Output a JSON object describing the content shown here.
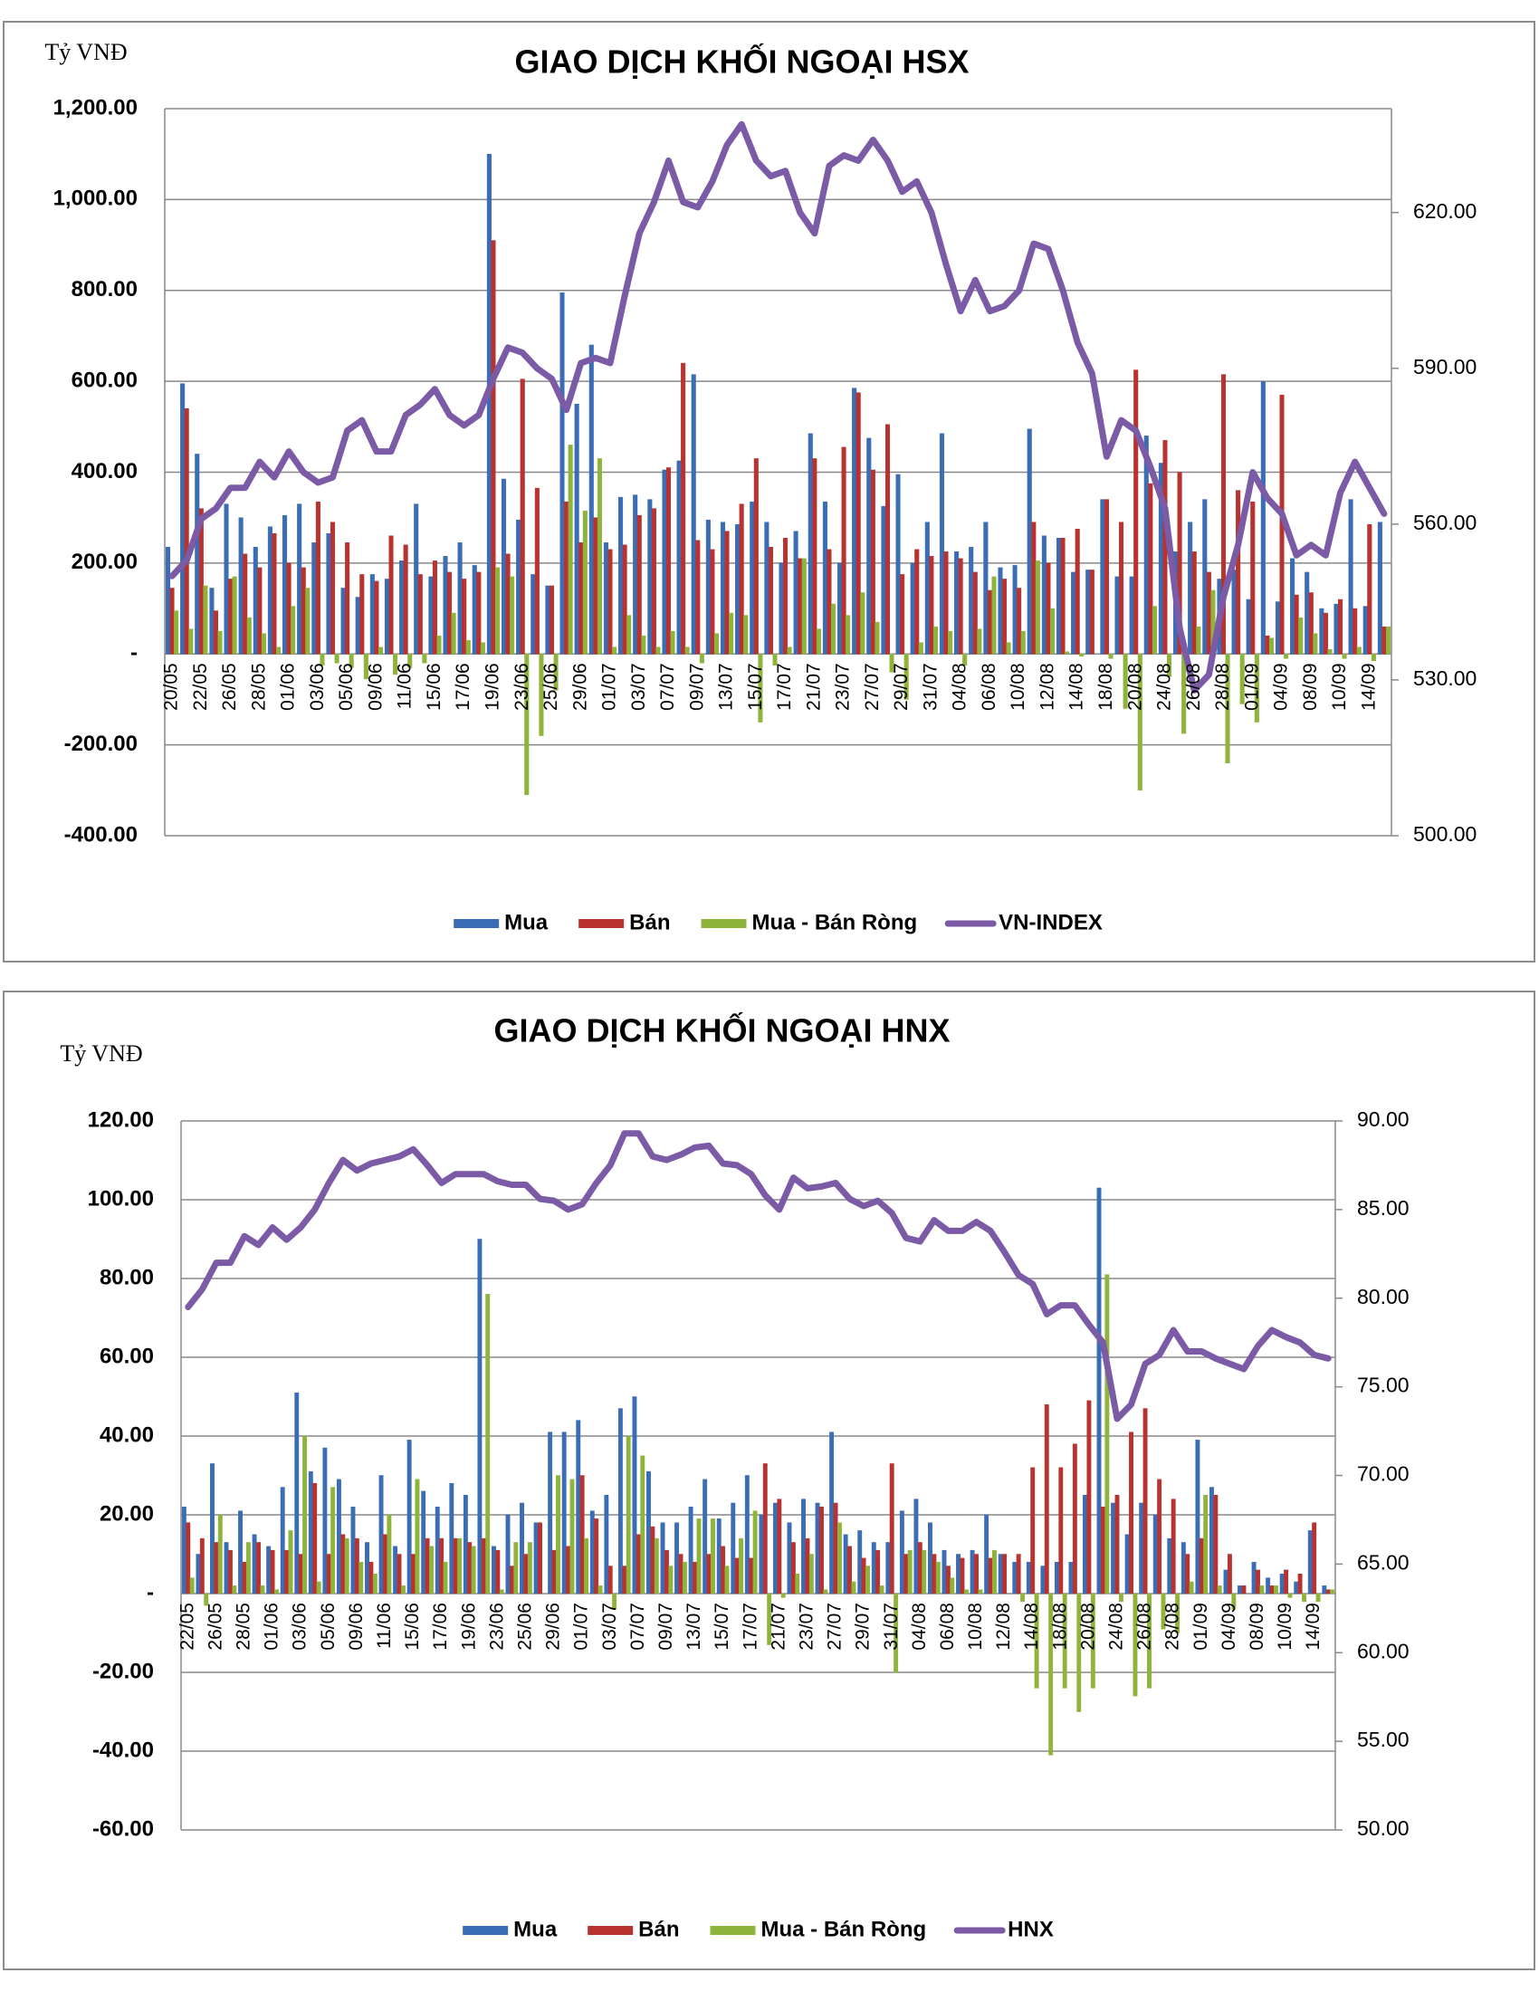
{
  "chart_data": [
    {
      "type": "bar",
      "title": "GIAO DỊCH KHỐI NGOẠI HSX",
      "y_label": "Tỷ VNĐ",
      "legend": "bottom",
      "grid": true,
      "categories": [
        "20/05",
        null,
        "22/05",
        null,
        "26/05",
        null,
        "28/05",
        null,
        "01/06",
        null,
        "03/06",
        null,
        "05/06",
        null,
        "09/06",
        null,
        "11/06",
        null,
        "15/06",
        null,
        "17/06",
        null,
        "19/06",
        null,
        "23/06",
        null,
        "25/06",
        null,
        "29/06",
        null,
        "01/07",
        null,
        "03/07",
        null,
        "07/07",
        null,
        "09/07",
        null,
        "13/07",
        null,
        "15/07",
        null,
        "17/07",
        null,
        "21/07",
        null,
        "23/07",
        null,
        "27/07",
        null,
        "29/07",
        null,
        "31/07",
        null,
        "04/08",
        null,
        "06/08",
        null,
        "10/08",
        null,
        "12/08",
        null,
        "14/08",
        null,
        "18/08",
        null,
        "20/08",
        null,
        "24/08",
        null,
        "26/08",
        null,
        "28/08",
        null,
        "01/09",
        null,
        "04/09",
        null,
        "08/09",
        null,
        "10/09",
        null,
        "14/09",
        null
      ],
      "ylim": [
        -400,
        1200
      ],
      "yticks": [
        {
          "value": -400,
          "label": "-400.00"
        },
        {
          "value": -200,
          "label": "-200.00"
        },
        {
          "value": 0,
          "label": "-"
        },
        {
          "value": 200,
          "label": "200.00"
        },
        {
          "value": 400,
          "label": "400.00"
        },
        {
          "value": 600,
          "label": "600.00"
        },
        {
          "value": 800,
          "label": "800.00"
        },
        {
          "value": 1000,
          "label": "1,000.00"
        },
        {
          "value": 1200,
          "label": "1,200.00"
        }
      ],
      "y2lim": [
        500,
        640
      ],
      "y2ticks": [
        {
          "value": 500,
          "label": "500.00"
        },
        {
          "value": 530,
          "label": "530.00"
        },
        {
          "value": 560,
          "label": "560.00"
        },
        {
          "value": 590,
          "label": "590.00"
        },
        {
          "value": 620,
          "label": "620.00"
        }
      ],
      "series": [
        {
          "name": "Mua",
          "color": "#3a6db5",
          "values": [
            235,
            595,
            440,
            145,
            330,
            300,
            235,
            280,
            305,
            330,
            245,
            265,
            145,
            125,
            175,
            165,
            205,
            330,
            170,
            215,
            245,
            195,
            1100,
            385,
            295,
            175,
            150,
            795,
            550,
            680,
            245,
            345,
            350,
            340,
            405,
            425,
            615,
            295,
            290,
            285,
            335,
            290,
            200,
            270,
            485,
            335,
            200,
            585,
            475,
            325,
            395,
            200,
            290,
            485,
            225,
            235,
            290,
            190,
            195,
            495,
            260,
            255,
            180,
            185,
            340,
            170,
            170,
            480,
            420,
            225,
            290,
            340,
            165,
            185,
            120,
            600,
            115,
            210,
            180,
            100,
            110,
            340,
            105,
            290
          ]
        },
        {
          "name": "Bán",
          "color": "#b83330",
          "values": [
            145,
            540,
            320,
            95,
            165,
            220,
            190,
            265,
            200,
            190,
            335,
            290,
            245,
            175,
            160,
            260,
            240,
            175,
            205,
            180,
            165,
            180,
            910,
            220,
            605,
            365,
            150,
            335,
            245,
            300,
            230,
            240,
            305,
            320,
            410,
            640,
            250,
            230,
            270,
            330,
            430,
            235,
            255,
            210,
            430,
            230,
            455,
            575,
            405,
            505,
            175,
            230,
            215,
            225,
            210,
            180,
            140,
            165,
            145,
            290,
            200,
            255,
            275,
            185,
            340,
            290,
            625,
            375,
            470,
            400,
            225,
            180,
            615,
            360,
            335,
            40,
            570,
            130,
            135,
            90,
            120,
            100,
            285,
            60
          ]
        },
        {
          "name": "Mua - Bán Ròng",
          "color": "#8fb43c",
          "values": [
            95,
            55,
            150,
            50,
            170,
            80,
            45,
            15,
            105,
            145,
            -25,
            -20,
            -30,
            -55,
            15,
            -45,
            -30,
            -20,
            40,
            90,
            30,
            25,
            190,
            170,
            -310,
            -180,
            -80,
            460,
            315,
            430,
            15,
            85,
            40,
            15,
            50,
            15,
            -20,
            45,
            90,
            85,
            -150,
            -25,
            15,
            210,
            55,
            110,
            85,
            135,
            70,
            -40,
            -100,
            25,
            60,
            50,
            -25,
            55,
            170,
            25,
            50,
            205,
            100,
            5,
            -5,
            0,
            -10,
            -120,
            -300,
            105,
            -50,
            -175,
            60,
            140,
            -240,
            -110,
            -150,
            35,
            -10,
            80,
            45,
            10,
            -10,
            15,
            -15,
            60
          ]
        },
        {
          "name": "VN-INDEX",
          "type": "line",
          "axis": "y2",
          "color": "#7b5aa6",
          "values": [
            550,
            553,
            561,
            563,
            567,
            567,
            572,
            569,
            574,
            570,
            568,
            569,
            578,
            580,
            574,
            574,
            581,
            583,
            586,
            581,
            579,
            581,
            588,
            594,
            593,
            590,
            588,
            582,
            591,
            592,
            591,
            604,
            616,
            622,
            630,
            622,
            621,
            626,
            633,
            637,
            630,
            627,
            628,
            620,
            616,
            629,
            631,
            630,
            634,
            630,
            624,
            626,
            620,
            610,
            601,
            607,
            601,
            602,
            605,
            614,
            613,
            605,
            595,
            589,
            573,
            580,
            578,
            571,
            563,
            540,
            528,
            531,
            546,
            556,
            570,
            565,
            562,
            554,
            556,
            554,
            566,
            572,
            567,
            562
          ]
        }
      ]
    },
    {
      "type": "bar",
      "title": "GIAO DỊCH KHỐI NGOẠI HNX",
      "y_label": "Tỷ VNĐ",
      "legend": "bottom",
      "grid": true,
      "categories": [
        "22/05",
        null,
        "26/05",
        null,
        "28/05",
        null,
        "01/06",
        null,
        "03/06",
        null,
        "05/06",
        null,
        "09/06",
        null,
        "11/06",
        null,
        "15/06",
        null,
        "17/06",
        null,
        "19/06",
        null,
        "23/06",
        null,
        "25/06",
        null,
        "29/06",
        null,
        "01/07",
        null,
        "03/07",
        null,
        "07/07",
        null,
        "09/07",
        null,
        "13/07",
        null,
        "15/07",
        null,
        "17/07",
        null,
        "21/07",
        null,
        "23/07",
        null,
        "27/07",
        null,
        "29/07",
        null,
        "31/07",
        null,
        "04/08",
        null,
        "06/08",
        null,
        "10/08",
        null,
        "12/08",
        null,
        "14/08",
        null,
        "18/08",
        null,
        "20/08",
        null,
        "24/08",
        null,
        "26/08",
        null,
        "28/08",
        null,
        "01/09",
        null,
        "04/09",
        null,
        "08/09",
        null,
        "10/09",
        null,
        "14/09",
        null
      ],
      "ylim": [
        -60,
        120
      ],
      "yticks": [
        {
          "value": -60,
          "label": "-60.00"
        },
        {
          "value": -40,
          "label": "-40.00"
        },
        {
          "value": -20,
          "label": "-20.00"
        },
        {
          "value": 0,
          "label": "-"
        },
        {
          "value": 20,
          "label": "20.00"
        },
        {
          "value": 40,
          "label": "40.00"
        },
        {
          "value": 60,
          "label": "60.00"
        },
        {
          "value": 80,
          "label": "80.00"
        },
        {
          "value": 100,
          "label": "100.00"
        },
        {
          "value": 120,
          "label": "120.00"
        }
      ],
      "y2lim": [
        50,
        90
      ],
      "y2ticks": [
        {
          "value": 50,
          "label": "50.00"
        },
        {
          "value": 55,
          "label": "55.00"
        },
        {
          "value": 60,
          "label": "60.00"
        },
        {
          "value": 65,
          "label": "65.00"
        },
        {
          "value": 70,
          "label": "70.00"
        },
        {
          "value": 75,
          "label": "75.00"
        },
        {
          "value": 80,
          "label": "80.00"
        },
        {
          "value": 85,
          "label": "85.00"
        },
        {
          "value": 90,
          "label": "90.00"
        }
      ],
      "series": [
        {
          "name": "Mua",
          "color": "#3a6db5",
          "values": [
            22,
            10,
            33,
            13,
            21,
            15,
            12,
            27,
            51,
            31,
            37,
            29,
            22,
            13,
            30,
            12,
            39,
            26,
            22,
            28,
            25,
            90,
            12,
            20,
            23,
            18,
            41,
            41,
            44,
            21,
            25,
            47,
            50,
            31,
            18,
            18,
            22,
            29,
            19,
            23,
            30,
            20,
            23,
            18,
            24,
            23,
            41,
            15,
            16,
            13,
            13,
            21,
            24,
            18,
            11,
            10,
            11,
            20,
            10,
            8,
            8,
            7,
            8,
            8,
            25,
            103,
            23,
            15,
            23,
            20,
            14,
            13,
            39,
            27,
            6,
            2,
            8,
            4,
            5,
            3,
            16,
            2
          ]
        },
        {
          "name": "Bán",
          "color": "#b83330",
          "values": [
            18,
            14,
            13,
            11,
            8,
            13,
            11,
            11,
            10,
            28,
            10,
            15,
            14,
            8,
            15,
            10,
            10,
            14,
            14,
            14,
            13,
            14,
            11,
            7,
            10,
            18,
            11,
            12,
            30,
            19,
            7,
            7,
            15,
            17,
            11,
            10,
            8,
            10,
            12,
            9,
            9,
            33,
            24,
            13,
            14,
            22,
            23,
            12,
            9,
            11,
            33,
            10,
            13,
            10,
            7,
            9,
            10,
            9,
            10,
            10,
            32,
            48,
            32,
            38,
            49,
            22,
            25,
            41,
            47,
            29,
            24,
            10,
            14,
            25,
            10,
            2,
            6,
            2,
            6,
            5,
            18,
            1
          ]
        },
        {
          "name": "Mua - Bán Ròng",
          "color": "#8fb43c",
          "values": [
            4,
            -3,
            20,
            2,
            13,
            2,
            1,
            16,
            40,
            3,
            27,
            14,
            8,
            5,
            20,
            2,
            29,
            12,
            8,
            14,
            12,
            76,
            1,
            13,
            13,
            0,
            30,
            29,
            14,
            2,
            -4,
            40,
            35,
            14,
            7,
            8,
            19,
            19,
            7,
            14,
            21,
            -13,
            -1,
            5,
            10,
            1,
            18,
            3,
            7,
            2,
            -20,
            11,
            11,
            8,
            4,
            1,
            1,
            11,
            0,
            -2,
            -24,
            -41,
            -24,
            -30,
            -24,
            81,
            -2,
            -26,
            -24,
            -9,
            -10,
            3,
            25,
            2,
            -4,
            0,
            2,
            2,
            -1,
            -2,
            -2,
            1
          ]
        },
        {
          "name": "HNX",
          "type": "line",
          "axis": "y2",
          "color": "#7b5aa6",
          "values": [
            79.5,
            80.5,
            82,
            82,
            83.5,
            83,
            84,
            83.3,
            84,
            85,
            86.5,
            87.8,
            87.2,
            87.6,
            87.8,
            88,
            88.4,
            87.5,
            86.5,
            87,
            87,
            87,
            86.6,
            86.4,
            86.4,
            85.6,
            85.5,
            85,
            85.3,
            86.5,
            87.5,
            89.3,
            89.3,
            88,
            87.8,
            88.1,
            88.5,
            88.6,
            87.6,
            87.5,
            87,
            85.8,
            85,
            86.8,
            86.2,
            86.3,
            86.5,
            85.6,
            85.2,
            85.5,
            84.8,
            83.4,
            83.2,
            84.4,
            83.8,
            83.8,
            84.3,
            83.8,
            82.6,
            81.3,
            80.8,
            79.1,
            79.6,
            79.6,
            78.5,
            77.5,
            73.2,
            74,
            76.3,
            76.8,
            78.2,
            77,
            77,
            76.6,
            76.3,
            76,
            77.3,
            78.2,
            77.8,
            77.5,
            76.8,
            76.6
          ]
        }
      ]
    }
  ]
}
